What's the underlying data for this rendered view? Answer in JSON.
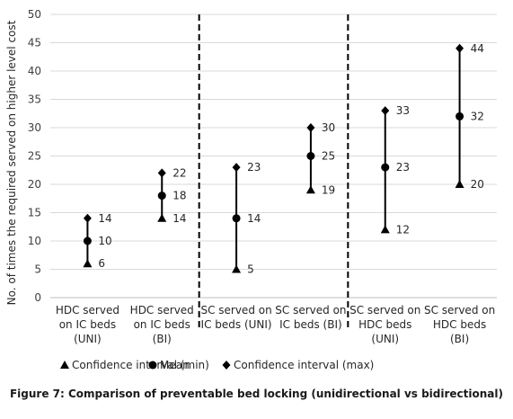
{
  "caption": "Figure 7: Comparison of preventable bed locking (unidirectional vs bidirectional)",
  "chart_data": {
    "type": "scatter",
    "title": "",
    "xlabel": "",
    "ylabel": "No. of times the required served on higher level cost",
    "ylim": [
      0,
      50
    ],
    "yticks": [
      0,
      5,
      10,
      15,
      20,
      25,
      30,
      35,
      40,
      45,
      50
    ],
    "grid": "horizontal",
    "legend_position": "bottom",
    "categories": [
      [
        "HDC served",
        "on IC beds",
        "(UNI)"
      ],
      [
        "HDC served",
        "on IC beds",
        "(BI)"
      ],
      [
        "SC served on",
        "IC beds (UNI)"
      ],
      [
        "SC served on",
        "IC beds (BI)"
      ],
      [
        "SC served on",
        "HDC beds",
        "(UNI)"
      ],
      [
        "SC served on",
        "HDC beds",
        "(BI)"
      ]
    ],
    "series": [
      {
        "name": "Confidence interval (min)",
        "marker": "triangle",
        "values": [
          6,
          14,
          5,
          19,
          12,
          20
        ]
      },
      {
        "name": "Mean",
        "marker": "circle",
        "values": [
          10,
          18,
          14,
          25,
          23,
          32
        ]
      },
      {
        "name": "Confidence interval (max)",
        "marker": "diamond",
        "values": [
          14,
          22,
          23,
          30,
          33,
          44
        ]
      }
    ],
    "group_dividers_after": [
      2,
      4
    ],
    "colors": {
      "marker": "#000000",
      "grid": "#d9d9d9",
      "axis": "#bfbfbf"
    }
  }
}
